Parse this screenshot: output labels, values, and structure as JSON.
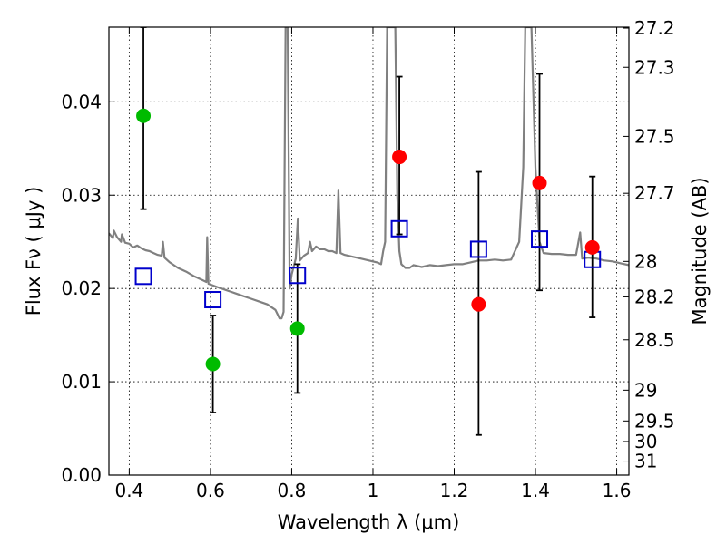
{
  "chart_data": {
    "type": "scatter",
    "xlabel": "Wavelength  λ (μm)",
    "ylabel": "Flux  Fν  ( μJy )",
    "ylabel_right": "Magnitude (AB)",
    "xlim": [
      0.35,
      1.63
    ],
    "ylim": [
      0.0,
      0.048
    ],
    "grid": true,
    "x_ticks": [
      0.4,
      0.6,
      0.8,
      1.0,
      1.2,
      1.4,
      1.6
    ],
    "x_tick_labels": [
      "0.4",
      "0.6",
      "0.8",
      "1",
      "1.2",
      "1.4",
      "1.6"
    ],
    "y_ticks": [
      0.0,
      0.01,
      0.02,
      0.03,
      0.04
    ],
    "y_tick_labels": [
      "0.00",
      "0.01",
      "0.02",
      "0.03",
      "0.04"
    ],
    "right_ticks": [
      {
        "label": "27.2",
        "flux": 0.0479
      },
      {
        "label": "27.3",
        "flux": 0.0437
      },
      {
        "label": "27.5",
        "flux": 0.0363
      },
      {
        "label": "27.7",
        "flux": 0.0302
      },
      {
        "label": "28",
        "flux": 0.0229
      },
      {
        "label": "28.2",
        "flux": 0.0191
      },
      {
        "label": "28.5",
        "flux": 0.0145
      },
      {
        "label": "29",
        "flux": 0.0091
      },
      {
        "label": "29.5",
        "flux": 0.0058
      },
      {
        "label": "30",
        "flux": 0.0036
      },
      {
        "label": "31",
        "flux": 0.0015
      }
    ],
    "model_spectrum": {
      "color": "#808080",
      "points": [
        [
          0.35,
          0.0259
        ],
        [
          0.36,
          0.0254
        ],
        [
          0.362,
          0.0262
        ],
        [
          0.37,
          0.0255
        ],
        [
          0.38,
          0.025
        ],
        [
          0.382,
          0.0258
        ],
        [
          0.39,
          0.0249
        ],
        [
          0.4,
          0.0248
        ],
        [
          0.41,
          0.0244
        ],
        [
          0.42,
          0.0246
        ],
        [
          0.43,
          0.0243
        ],
        [
          0.44,
          0.0241
        ],
        [
          0.45,
          0.024
        ],
        [
          0.46,
          0.0238
        ],
        [
          0.47,
          0.0236
        ],
        [
          0.48,
          0.0235
        ],
        [
          0.483,
          0.025
        ],
        [
          0.487,
          0.0233
        ],
        [
          0.5,
          0.0228
        ],
        [
          0.52,
          0.0222
        ],
        [
          0.54,
          0.0218
        ],
        [
          0.56,
          0.0213
        ],
        [
          0.58,
          0.0209
        ],
        [
          0.59,
          0.0207
        ],
        [
          0.592,
          0.0255
        ],
        [
          0.595,
          0.0205
        ],
        [
          0.62,
          0.0201
        ],
        [
          0.64,
          0.0198
        ],
        [
          0.66,
          0.0195
        ],
        [
          0.68,
          0.0192
        ],
        [
          0.7,
          0.0189
        ],
        [
          0.72,
          0.0186
        ],
        [
          0.74,
          0.0183
        ],
        [
          0.75,
          0.018
        ],
        [
          0.76,
          0.0177
        ],
        [
          0.77,
          0.0168
        ],
        [
          0.775,
          0.0168
        ],
        [
          0.78,
          0.0175
        ],
        [
          0.785,
          0.048
        ],
        [
          0.79,
          0.048
        ],
        [
          0.795,
          0.02
        ],
        [
          0.8,
          0.0215
        ],
        [
          0.81,
          0.0232
        ],
        [
          0.815,
          0.0275
        ],
        [
          0.82,
          0.023
        ],
        [
          0.83,
          0.0235
        ],
        [
          0.84,
          0.0238
        ],
        [
          0.845,
          0.025
        ],
        [
          0.85,
          0.024
        ],
        [
          0.86,
          0.0245
        ],
        [
          0.87,
          0.0242
        ],
        [
          0.88,
          0.0242
        ],
        [
          0.89,
          0.024
        ],
        [
          0.9,
          0.024
        ],
        [
          0.91,
          0.0238
        ],
        [
          0.915,
          0.0305
        ],
        [
          0.92,
          0.0238
        ],
        [
          0.93,
          0.0236
        ],
        [
          0.95,
          0.0234
        ],
        [
          0.97,
          0.0232
        ],
        [
          0.99,
          0.023
        ],
        [
          1.01,
          0.0228
        ],
        [
          1.02,
          0.0226
        ],
        [
          1.025,
          0.024
        ],
        [
          1.03,
          0.025
        ],
        [
          1.035,
          0.048
        ],
        [
          1.055,
          0.048
        ],
        [
          1.06,
          0.03
        ],
        [
          1.065,
          0.024
        ],
        [
          1.07,
          0.0226
        ],
        [
          1.08,
          0.0222
        ],
        [
          1.09,
          0.0222
        ],
        [
          1.1,
          0.0225
        ],
        [
          1.12,
          0.0223
        ],
        [
          1.14,
          0.0225
        ],
        [
          1.16,
          0.0224
        ],
        [
          1.18,
          0.0225
        ],
        [
          1.2,
          0.0226
        ],
        [
          1.22,
          0.0226
        ],
        [
          1.24,
          0.0228
        ],
        [
          1.26,
          0.023
        ],
        [
          1.28,
          0.023
        ],
        [
          1.3,
          0.0231
        ],
        [
          1.32,
          0.023
        ],
        [
          1.34,
          0.0231
        ],
        [
          1.36,
          0.025
        ],
        [
          1.37,
          0.033
        ],
        [
          1.375,
          0.048
        ],
        [
          1.39,
          0.048
        ],
        [
          1.4,
          0.033
        ],
        [
          1.41,
          0.025
        ],
        [
          1.42,
          0.0238
        ],
        [
          1.44,
          0.0237
        ],
        [
          1.46,
          0.0237
        ],
        [
          1.48,
          0.0236
        ],
        [
          1.5,
          0.0236
        ],
        [
          1.51,
          0.026
        ],
        [
          1.515,
          0.0232
        ],
        [
          1.53,
          0.0233
        ],
        [
          1.55,
          0.0232
        ],
        [
          1.57,
          0.023
        ],
        [
          1.59,
          0.0229
        ],
        [
          1.61,
          0.0227
        ],
        [
          1.63,
          0.0225
        ]
      ]
    },
    "model_photometry": {
      "marker": "open-square",
      "color": "#0000cc",
      "points": [
        [
          0.435,
          0.0213
        ],
        [
          0.606,
          0.0188
        ],
        [
          0.814,
          0.0214
        ],
        [
          1.065,
          0.0264
        ],
        [
          1.26,
          0.0242
        ],
        [
          1.41,
          0.0253
        ],
        [
          1.54,
          0.0231
        ]
      ]
    },
    "observed_green": {
      "marker": "filled-circle",
      "color": "#00bb00",
      "points": [
        {
          "x": 0.435,
          "y": 0.0385,
          "err_low": 0.0285,
          "err_high": 0.048
        },
        {
          "x": 0.606,
          "y": 0.0119,
          "err_low": 0.0067,
          "err_high": 0.0171
        },
        {
          "x": 0.814,
          "y": 0.0157,
          "err_low": 0.0088,
          "err_high": 0.0226
        }
      ]
    },
    "observed_red": {
      "marker": "filled-circle",
      "color": "#ff0000",
      "points": [
        {
          "x": 1.065,
          "y": 0.0341,
          "err_low": 0.0258,
          "err_high": 0.0427
        },
        {
          "x": 1.26,
          "y": 0.0183,
          "err_low": 0.0043,
          "err_high": 0.0325
        },
        {
          "x": 1.41,
          "y": 0.0313,
          "err_low": 0.0198,
          "err_high": 0.043
        },
        {
          "x": 1.54,
          "y": 0.0244,
          "err_low": 0.0169,
          "err_high": 0.032
        }
      ]
    }
  }
}
